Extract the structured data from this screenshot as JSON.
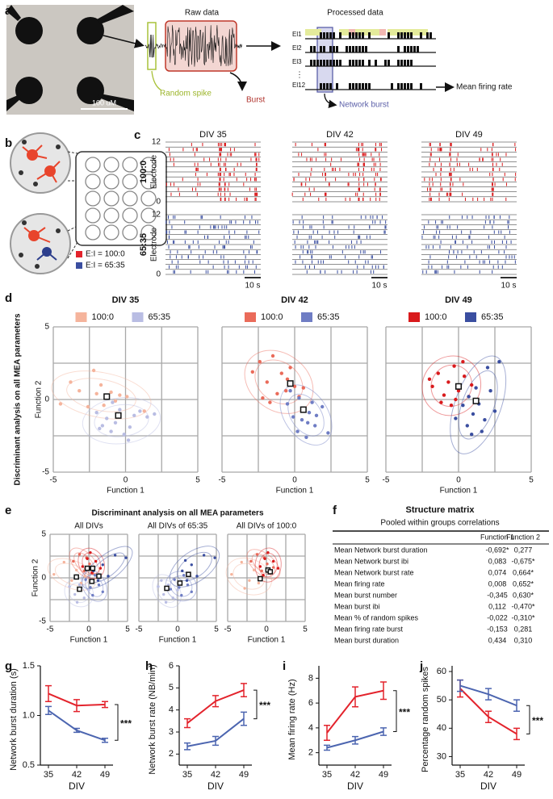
{
  "panel_labels": [
    "a",
    "b",
    "c",
    "d",
    "e",
    "f",
    "g",
    "h",
    "i",
    "j"
  ],
  "panel_a": {
    "scale_bar": "100 uM",
    "raw_title": "Raw data",
    "processed_title": "Processed data",
    "random_spike": "Random spike",
    "burst": "Burst",
    "electrodes": [
      "El1",
      "El2",
      "El3",
      "El12"
    ],
    "network_burst": "Network burst",
    "mean_firing_rate": "Mean firing rate"
  },
  "panel_b": {
    "legend": [
      "E:I = 100:0",
      "E:I = 65:35"
    ]
  },
  "panel_c": {
    "conditions": [
      "DIV 35",
      "DIV 42",
      "DIV 49"
    ],
    "groups": [
      "100:0",
      "65:35"
    ],
    "ylabel": "Electrode",
    "yticks": [
      "12",
      "0"
    ],
    "scale_bar": "10 s"
  },
  "panel_d": {
    "ylabel": "Discriminant analysis on all MEA parameters"
  },
  "panel_e": {
    "title": "Discriminant analysis on all MEA parameters"
  },
  "panel_f": {
    "title": "Structure matrix",
    "subtitle": "Pooled within groups correlations",
    "columns": [
      "Function 1",
      "Function 2"
    ],
    "rows": [
      [
        "Mean Network burst duration",
        "-0,692*",
        "0,277"
      ],
      [
        "Mean Network burst ibi",
        "0,083",
        "-0,675*"
      ],
      [
        "Mean Network burst rate",
        "0,074",
        "0,664*"
      ],
      [
        "Mean firing rate",
        "0,008",
        "0,652*"
      ],
      [
        "Mean burst number",
        "-0,345",
        "0,630*"
      ],
      [
        "Mean burst ibi",
        "0,112",
        "-0,470*"
      ],
      [
        "Mean % of random spikes",
        "-0,022",
        "-0,310*"
      ],
      [
        "Mean firing rate burst",
        "-0,153",
        "0,281"
      ],
      [
        "Mean burst duration",
        "0,434",
        "0,310"
      ]
    ]
  },
  "chart_data": [
    {
      "type": "scatter",
      "title": "DIV 35",
      "xlabel": "Function 1",
      "ylabel": "Function 2",
      "xlim": [
        -5,
        5
      ],
      "ylim": [
        -5,
        5
      ],
      "xticks": [
        -5,
        0,
        5
      ],
      "yticks": [
        -5,
        0,
        5
      ],
      "grid": true,
      "series": [
        {
          "name": "100:0",
          "color": "#f5b49c",
          "x": [
            -4.5,
            -3.8,
            -3.2,
            -2.6,
            -2.0,
            -1.7,
            -1.3,
            -1.0,
            -0.7,
            -0.4,
            0.1,
            -2.2,
            -1.5,
            1.3
          ],
          "y": [
            -0.3,
            1.2,
            0.6,
            -0.5,
            0.4,
            1.0,
            0.2,
            0.5,
            -0.1,
            0.3,
            0.2,
            2.0,
            -0.4,
            -0.8
          ],
          "centroid": [
            -1.3,
            0.2
          ]
        },
        {
          "name": "65:35",
          "color": "#b9bde3",
          "x": [
            -2.0,
            -1.6,
            -1.3,
            -1.0,
            -0.7,
            -0.4,
            -0.1,
            0.3,
            0.6,
            1.0,
            1.5,
            2.0,
            -1.8,
            -0.9,
            0.2
          ],
          "y": [
            -0.9,
            -1.8,
            -1.3,
            -2.2,
            -1.6,
            -0.7,
            -2.4,
            -1.9,
            -1.1,
            -0.8,
            -1.2,
            -1.0,
            -2.0,
            -0.2,
            -2.8
          ],
          "centroid": [
            -0.5,
            -1.1
          ]
        }
      ]
    },
    {
      "type": "scatter",
      "title": "DIV 42",
      "xlabel": "Function 1",
      "xlim": [
        -5,
        5
      ],
      "ylim": [
        -5,
        5
      ],
      "xticks": [
        -5,
        0,
        5
      ],
      "yticks": [
        -5,
        0,
        5
      ],
      "yticklabels": false,
      "grid": true,
      "series": [
        {
          "name": "100:0",
          "color": "#ea6b5a",
          "x": [
            -2.9,
            -2.4,
            -1.9,
            -1.5,
            -1.2,
            -0.9,
            -0.6,
            -0.3,
            0.0,
            0.3,
            -1.7,
            -0.5,
            0.6,
            -2.2
          ],
          "y": [
            1.9,
            2.6,
            1.2,
            3.0,
            0.4,
            1.8,
            0.6,
            2.2,
            0.9,
            0.2,
            -0.2,
            1.4,
            0.8,
            0.1
          ],
          "centroid": [
            -0.3,
            1.1
          ]
        },
        {
          "name": "65:35",
          "color": "#6f7dc4",
          "x": [
            -0.5,
            -0.1,
            0.3,
            0.6,
            0.9,
            1.2,
            1.5,
            1.9,
            0.2,
            0.8,
            1.4,
            -0.3,
            2.3,
            1.0,
            0.5
          ],
          "y": [
            -0.3,
            -1.2,
            0.1,
            -0.6,
            -1.6,
            -0.2,
            -1.1,
            -0.5,
            -2.2,
            -2.6,
            -1.8,
            0.6,
            -2.3,
            -0.9,
            -1.4
          ],
          "centroid": [
            0.6,
            -0.7
          ]
        }
      ]
    },
    {
      "type": "scatter",
      "title": "DIV 49",
      "xlabel": "Function 1",
      "xlim": [
        -5,
        5
      ],
      "ylim": [
        -5,
        5
      ],
      "xticks": [
        -5,
        0,
        5
      ],
      "yticks": [
        -5,
        0,
        5
      ],
      "yticklabels": false,
      "grid": true,
      "series": [
        {
          "name": "100:0",
          "color": "#d91a1c",
          "x": [
            -1.8,
            -1.4,
            -1.0,
            -0.7,
            -0.3,
            0.0,
            0.4,
            0.7,
            -1.2,
            -0.5,
            0.3,
            -2.0,
            0.9,
            -0.2
          ],
          "y": [
            0.9,
            1.8,
            0.3,
            1.2,
            2.3,
            0.6,
            1.6,
            0.2,
            -0.2,
            -0.4,
            2.6,
            1.4,
            1.0,
            0.0
          ],
          "centroid": [
            0.0,
            0.9
          ]
        },
        {
          "name": "65:35",
          "color": "#3a4ea0",
          "x": [
            0.3,
            0.7,
            1.0,
            1.4,
            1.8,
            2.2,
            0.6,
            1.2,
            1.6,
            2.5,
            0.9,
            2.0,
            -0.2,
            2.8
          ],
          "y": [
            -0.4,
            0.2,
            -1.0,
            -0.3,
            -1.4,
            0.6,
            -1.8,
            0.8,
            -2.2,
            -0.8,
            -2.4,
            2.2,
            -1.3,
            2.6
          ],
          "centroid": [
            1.2,
            -0.1
          ]
        }
      ]
    },
    {
      "type": "scatter",
      "title": "All DIVs",
      "xlabel": "Function 1",
      "ylabel": "Function 2",
      "xlim": [
        -5,
        5
      ],
      "ylim": [
        -5,
        5
      ],
      "xticks": [
        -5,
        0,
        5
      ],
      "yticks": [
        -5,
        0,
        5
      ],
      "grid": true,
      "series": [
        {
          "color": "#f5b49c",
          "x": [
            -4.5,
            -3.2,
            -2.2,
            -1.6,
            -1.0,
            -0.5
          ],
          "y": [
            0.4,
            1.8,
            -0.3,
            0.9,
            -0.6,
            0.2
          ],
          "centroid": [
            -1.6,
            0.1
          ]
        },
        {
          "color": "#ea6b5a",
          "x": [
            -2.0,
            -1.2,
            -0.6,
            0.1,
            0.5,
            -0.3
          ],
          "y": [
            1.9,
            2.7,
            0.8,
            1.6,
            0.5,
            2.3
          ],
          "centroid": [
            -0.2,
            1.1
          ]
        },
        {
          "color": "#d91a1c",
          "x": [
            -0.8,
            -0.2,
            0.4,
            0.9,
            1.5,
            0.2
          ],
          "y": [
            1.3,
            2.2,
            0.6,
            1.9,
            1.1,
            2.9
          ],
          "centroid": [
            0.5,
            1.1
          ]
        },
        {
          "color": "#b9bde3",
          "x": [
            -2.5,
            -1.8,
            -1.2,
            -0.6,
            0.0,
            -1.5
          ],
          "y": [
            -1.0,
            -1.9,
            -0.8,
            -2.3,
            -1.4,
            -2.8
          ],
          "centroid": [
            -1.2,
            -1.3
          ]
        },
        {
          "color": "#6f7dc4",
          "x": [
            -0.4,
            0.2,
            0.8,
            1.3,
            1.8,
            0.5
          ],
          "y": [
            -0.2,
            -1.1,
            0.3,
            -0.8,
            -1.6,
            -2.0
          ],
          "centroid": [
            0.4,
            -0.4
          ]
        },
        {
          "color": "#3a4ea0",
          "x": [
            0.6,
            1.2,
            1.8,
            2.5,
            3.4,
            4.8
          ],
          "y": [
            0.8,
            -0.3,
            1.5,
            0.2,
            2.6,
            2.3
          ],
          "centroid": [
            1.3,
            0.2
          ]
        }
      ]
    },
    {
      "type": "scatter",
      "title": "All DIVs of 65:35",
      "xlabel": "Function 1",
      "xlim": [
        -5,
        5
      ],
      "ylim": [
        -5,
        5
      ],
      "xticks": [
        -5,
        0,
        5
      ],
      "yticks": [
        -5,
        0,
        5
      ],
      "yticklabels": false,
      "grid": true,
      "series": [
        {
          "color": "#b9bde3",
          "x": [
            -2.5,
            -1.8,
            -1.2,
            -0.6,
            0.0,
            -1.5,
            -2.1
          ],
          "y": [
            -1.0,
            -1.9,
            -0.8,
            -2.3,
            -1.4,
            -2.8,
            -0.3
          ],
          "centroid": [
            -1.4,
            -1.2
          ]
        },
        {
          "color": "#6f7dc4",
          "x": [
            -0.4,
            0.2,
            0.8,
            1.3,
            1.8,
            0.5,
            -0.9
          ],
          "y": [
            -0.2,
            -1.1,
            0.3,
            -0.8,
            -1.6,
            -2.0,
            -1.3
          ],
          "centroid": [
            0.3,
            -0.6
          ]
        },
        {
          "color": "#3a4ea0",
          "x": [
            0.6,
            1.2,
            1.8,
            2.5,
            3.4,
            4.8,
            1.0
          ],
          "y": [
            0.8,
            -0.3,
            1.5,
            0.2,
            2.6,
            2.3,
            2.0
          ],
          "centroid": [
            1.4,
            0.4
          ]
        }
      ]
    },
    {
      "type": "scatter",
      "title": "All DIVs of 100:0",
      "xlabel": "Function 1",
      "xlim": [
        -5,
        5
      ],
      "ylim": [
        -5,
        5
      ],
      "xticks": [
        -5,
        0,
        5
      ],
      "yticks": [
        -5,
        0,
        5
      ],
      "yticklabels": false,
      "grid": true,
      "series": [
        {
          "color": "#f5b49c",
          "x": [
            -4.5,
            -3.2,
            -2.2,
            -1.6,
            -1.0,
            -0.5,
            -2.8
          ],
          "y": [
            0.4,
            1.8,
            -0.3,
            0.9,
            -0.6,
            0.2,
            -1.2
          ],
          "centroid": [
            -0.8,
            -0.1
          ]
        },
        {
          "color": "#ea6b5a",
          "x": [
            -2.0,
            -1.2,
            -0.6,
            0.1,
            0.5,
            -0.3,
            0.9
          ],
          "y": [
            1.9,
            2.7,
            0.8,
            1.6,
            0.5,
            2.3,
            1.2
          ],
          "centroid": [
            0.2,
            0.9
          ]
        },
        {
          "color": "#d91a1c",
          "x": [
            -0.8,
            -0.2,
            0.4,
            0.9,
            1.5,
            0.2,
            -0.4
          ],
          "y": [
            1.3,
            2.2,
            0.6,
            1.9,
            1.1,
            2.9,
            0.3
          ],
          "centroid": [
            0.5,
            0.7
          ]
        }
      ]
    },
    {
      "type": "line",
      "xlabel": "DIV",
      "ylabel": "Network burst duration (s)",
      "categories": [
        "35",
        "42",
        "49"
      ],
      "ylim": [
        0.5,
        1.5
      ],
      "yticks": [
        0.5,
        {
          "value": 1,
          "label": "1.0"
        },
        1.5
      ],
      "annotation": "***",
      "series": [
        {
          "color": "#e3232c",
          "values": [
            1.22,
            1.1,
            1.11
          ],
          "errors": [
            0.08,
            0.06,
            0.03
          ]
        },
        {
          "color": "#4c65b0",
          "values": [
            1.05,
            0.85,
            0.75
          ],
          "errors": [
            0.04,
            0.02,
            0.02
          ]
        }
      ]
    },
    {
      "type": "line",
      "xlabel": "DIV",
      "ylabel": "Network burst rate (NB/min)",
      "categories": [
        "35",
        "42",
        "49"
      ],
      "ylim": [
        1.5,
        6
      ],
      "yticks": [
        2,
        3,
        4,
        5,
        6
      ],
      "annotation": "***",
      "series": [
        {
          "color": "#e3232c",
          "values": [
            3.4,
            4.4,
            4.9
          ],
          "errors": [
            0.2,
            0.25,
            0.3
          ]
        },
        {
          "color": "#4c65b0",
          "values": [
            2.35,
            2.6,
            3.6
          ],
          "errors": [
            0.15,
            0.2,
            0.3
          ]
        }
      ]
    },
    {
      "type": "line",
      "xlabel": "DIV",
      "ylabel": "Mean firing rate (Hz)",
      "categories": [
        "35",
        "42",
        "49"
      ],
      "ylim": [
        1,
        9
      ],
      "yticks": [
        2,
        4,
        6,
        8
      ],
      "annotation": "***",
      "series": [
        {
          "color": "#e3232c",
          "values": [
            3.6,
            6.5,
            7.0
          ],
          "errors": [
            0.6,
            0.8,
            0.7
          ]
        },
        {
          "color": "#4c65b0",
          "values": [
            2.4,
            3.0,
            3.7
          ],
          "errors": [
            0.2,
            0.3,
            0.3
          ]
        }
      ]
    },
    {
      "type": "line",
      "xlabel": "DIV",
      "ylabel": "Percentage random spikes",
      "categories": [
        "35",
        "42",
        "49"
      ],
      "ylim": [
        27,
        62
      ],
      "yticks": [
        30,
        40,
        50,
        60
      ],
      "annotation": "***",
      "series": [
        {
          "color": "#e3232c",
          "values": [
            54,
            44,
            38
          ],
          "errors": [
            3,
            2,
            2
          ]
        },
        {
          "color": "#4c65b0",
          "values": [
            55,
            52,
            48
          ],
          "errors": [
            2,
            2,
            2
          ]
        }
      ]
    }
  ]
}
